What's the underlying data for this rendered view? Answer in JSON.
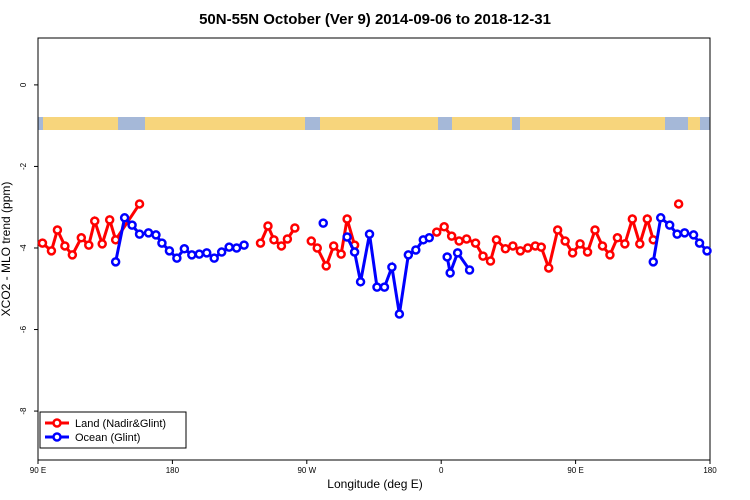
{
  "chart_data": {
    "type": "line",
    "title": "50N-55N October (Ver 9)   2014-09-06 to 2018-12-31",
    "x_label": "Longitude (deg E)",
    "y_label": "XCO2 - MLO trend (ppm)",
    "xlim": [
      90,
      540
    ],
    "xticks": [
      {
        "value": 90,
        "label": "90 E"
      },
      {
        "value": 180,
        "label": "180"
      },
      {
        "value": 270,
        "label": "90 W"
      },
      {
        "value": 360,
        "label": "0"
      },
      {
        "value": 450,
        "label": "90 E"
      },
      {
        "value": 540,
        "label": "180"
      }
    ],
    "ylim": [
      -9.2,
      1.15
    ],
    "yticks": [
      -8,
      -6,
      -4,
      -2,
      0
    ],
    "legend": "bottom-left",
    "series": [
      {
        "name": "Land (Nadir&Glint)",
        "color": "#ff0000",
        "x": [
          93,
          99,
          103,
          108,
          113,
          119,
          124,
          128,
          133,
          138,
          142,
          158,
          null,
          239,
          244,
          248,
          253,
          257,
          262,
          null,
          273,
          277,
          283,
          288,
          293,
          297,
          302,
          null,
          357,
          362,
          367,
          372,
          377,
          383,
          388,
          393,
          397,
          403,
          408,
          413,
          418,
          423,
          427,
          432,
          438,
          443,
          448,
          453,
          458,
          463,
          468,
          473,
          478,
          483,
          488,
          493,
          498,
          502,
          null,
          519
        ],
        "values": [
          -3.88,
          -4.07,
          -3.56,
          -3.95,
          -4.17,
          -3.75,
          -3.93,
          -3.34,
          -3.9,
          -3.31,
          -3.8,
          -2.92,
          null,
          -3.88,
          -3.46,
          -3.8,
          -3.95,
          -3.78,
          -3.51,
          null,
          -3.83,
          -4.0,
          -4.44,
          -3.95,
          -4.15,
          -3.29,
          -3.93,
          null,
          -3.61,
          -3.48,
          -3.71,
          -3.83,
          -3.78,
          -3.88,
          -4.2,
          -4.32,
          -3.8,
          -4.02,
          -3.95,
          -4.07,
          -4.0,
          -3.95,
          -3.98,
          -4.49,
          -3.56,
          -3.83,
          -4.12,
          -3.9,
          -4.1,
          -3.56,
          -3.95,
          -4.17,
          -3.75,
          -3.9,
          -3.29,
          -3.9,
          -3.29,
          -3.8,
          null,
          -2.92
        ]
      },
      {
        "name": "Ocean (Glint)",
        "color": "#0000ff",
        "x": [
          142,
          148,
          153,
          158,
          164,
          169,
          173,
          178,
          183,
          188,
          193,
          198,
          203,
          208,
          213,
          218,
          223,
          228,
          null,
          281,
          null,
          297,
          302,
          306,
          312,
          317,
          322,
          327,
          332,
          338,
          343,
          348,
          352,
          null,
          364,
          366,
          371,
          379,
          null,
          502,
          507,
          513,
          518,
          523,
          529,
          533,
          538
        ],
        "values": [
          -4.34,
          -3.26,
          -3.44,
          -3.66,
          -3.63,
          -3.68,
          -3.88,
          -4.07,
          -4.25,
          -4.02,
          -4.17,
          -4.15,
          -4.12,
          -4.25,
          -4.1,
          -3.98,
          -4.0,
          -3.93,
          null,
          -3.39,
          null,
          -3.73,
          -4.1,
          -4.83,
          -3.66,
          -4.96,
          -4.96,
          -4.47,
          -5.62,
          -4.17,
          -4.05,
          -3.8,
          -3.75,
          null,
          -4.22,
          -4.61,
          -4.12,
          -4.54,
          null,
          -4.34,
          -3.26,
          -3.44,
          -3.66,
          -3.63,
          -3.68,
          -3.88,
          -4.07
        ]
      }
    ]
  }
}
